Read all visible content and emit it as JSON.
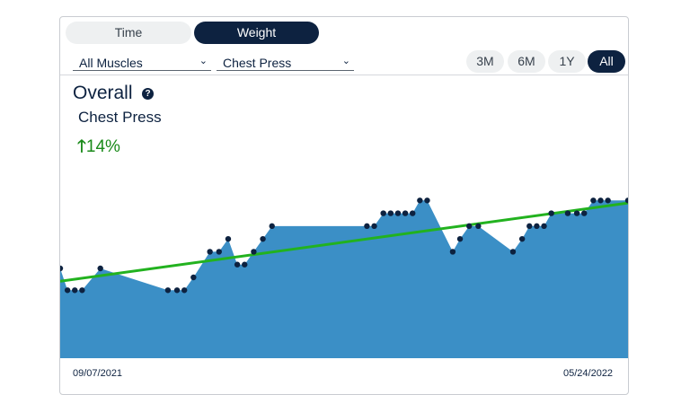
{
  "segment": {
    "time_label": "Time",
    "weight_label": "Weight",
    "active": "Weight"
  },
  "filters": {
    "muscle_group": "All Muscles",
    "exercise": "Chest Press",
    "ranges": [
      "3M",
      "6M",
      "1Y",
      "All"
    ],
    "active_range": "All"
  },
  "summary": {
    "title": "Overall",
    "exercise_name": "Chest Press",
    "trend_arrow": "🡑",
    "change": "14%"
  },
  "colors": {
    "primary": "#0d2240",
    "area": "#3b8fc6",
    "trend": "#22b21f",
    "positive": "#1a8a1a"
  },
  "chart_data": {
    "type": "area",
    "x_start_label": "09/07/2021",
    "x_end_label": "05/24/2022",
    "ylim": [
      0,
      140
    ],
    "values": [
      70,
      53,
      53,
      53,
      70,
      53,
      53,
      53,
      63,
      83,
      83,
      93,
      73,
      73,
      83,
      93,
      103,
      103,
      103,
      113,
      113,
      113,
      113,
      113,
      123,
      123,
      83,
      93,
      103,
      103,
      83,
      93,
      103,
      103,
      103,
      113,
      113,
      113,
      113,
      123,
      123,
      123,
      123
    ],
    "x_index": [
      0,
      4,
      8,
      12,
      22,
      59,
      64,
      68,
      73,
      82,
      87,
      92,
      97,
      101,
      106,
      111,
      116,
      168,
      172,
      177,
      181,
      185,
      189,
      193,
      197,
      201,
      215,
      219,
      224,
      229,
      248,
      253,
      257,
      261,
      265,
      269,
      278,
      283,
      287,
      292,
      296,
      300,
      311
    ],
    "trend_line": {
      "start": 60,
      "end": 121
    }
  }
}
